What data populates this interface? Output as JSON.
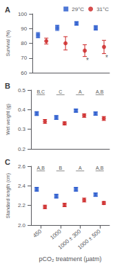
{
  "chart_data": [
    {
      "type": "scatter",
      "title": "A",
      "ylabel": "Survival (%)",
      "categories": [
        "450",
        "1000",
        "1000 ± 300",
        "1000 ± 500"
      ],
      "series": [
        {
          "name": "29°C",
          "color": "#2255cc",
          "marker": "square",
          "values": [
            85.5,
            90.5,
            93.5,
            90.5
          ],
          "errors": [
            1.8,
            1.8,
            1.2,
            1.5
          ]
        },
        {
          "name": "31°C",
          "color": "#cc2222",
          "marker": "circle",
          "values": [
            81.5,
            80.0,
            75.0,
            77.5
          ],
          "errors": [
            2.0,
            4.5,
            4.0,
            4.5
          ]
        }
      ],
      "ylim": [
        60,
        100
      ],
      "yticks": [
        60,
        70,
        80,
        90,
        100
      ],
      "grid": false,
      "tick_labels": "y",
      "legend": "upper right",
      "annotations": [
        {
          "text": "*",
          "category": "1000 ± 300",
          "below": "31°C"
        },
        {
          "text": "*",
          "category": "1000 ± 500",
          "below": "31°C"
        }
      ]
    },
    {
      "type": "scatter",
      "title": "B",
      "ylabel": "Wet weight (g)",
      "categories": [
        "450",
        "1000",
        "1000 ± 300",
        "1000 ± 500"
      ],
      "series": [
        {
          "name": "29°C",
          "color": "#2255cc",
          "marker": "square",
          "values": [
            0.38,
            0.36,
            0.395,
            0.38
          ],
          "errors": [
            0.01,
            0.01,
            0.008,
            0.009
          ]
        },
        {
          "name": "31°C",
          "color": "#cc2222",
          "marker": "circle",
          "values": [
            0.34,
            0.33,
            0.37,
            0.355
          ],
          "errors": [
            0.01,
            0.008,
            0.009,
            0.01
          ]
        }
      ],
      "ylim": [
        0.2,
        0.5
      ],
      "yticks": [
        0.2,
        0.3,
        0.4,
        0.5
      ],
      "grid": false,
      "tick_labels": "y",
      "annotations": [
        {
          "text": "B,C",
          "category": "450",
          "between": [
            "29°C",
            "31°C"
          ]
        },
        {
          "text": "C",
          "category": "1000",
          "between": [
            "29°C",
            "31°C"
          ]
        },
        {
          "text": "A",
          "category": "1000 ± 300",
          "between": [
            "29°C",
            "31°C"
          ]
        },
        {
          "text": "A,B",
          "category": "1000 ± 500",
          "between": [
            "29°C",
            "31°C"
          ]
        }
      ]
    },
    {
      "type": "scatter",
      "title": "C",
      "ylabel": "Standard length (cm)",
      "xlabel": "pCO₂ treatment (μatm)",
      "categories": [
        "450",
        "1000",
        "1000 ± 300",
        "1000 ± 500"
      ],
      "series": [
        {
          "name": "29°C",
          "color": "#2255cc",
          "marker": "square",
          "values": [
            2.365,
            2.295,
            2.365,
            2.31
          ],
          "errors": [
            0.02,
            0.02,
            0.02,
            0.018
          ]
        },
        {
          "name": "31°C",
          "color": "#cc2222",
          "marker": "circle",
          "values": [
            2.185,
            2.205,
            2.255,
            2.225
          ],
          "errors": [
            0.018,
            0.018,
            0.02,
            0.015
          ]
        }
      ],
      "ylim": [
        2.0,
        2.6
      ],
      "yticks": [
        {
          "value": 2.0,
          "label": "2.0"
        },
        2.2,
        2.4,
        2.6
      ],
      "grid": false,
      "annotations": [
        {
          "text": "A,B",
          "category": "450",
          "between": [
            "29°C",
            "31°C"
          ]
        },
        {
          "text": "B",
          "category": "1000",
          "between": [
            "29°C",
            "31°C"
          ]
        },
        {
          "text": "A",
          "category": "1000 ± 300",
          "between": [
            "29°C",
            "31°C"
          ]
        },
        {
          "text": "A,B",
          "category": "1000 ± 500",
          "between": [
            "29°C",
            "31°C"
          ]
        }
      ]
    }
  ]
}
